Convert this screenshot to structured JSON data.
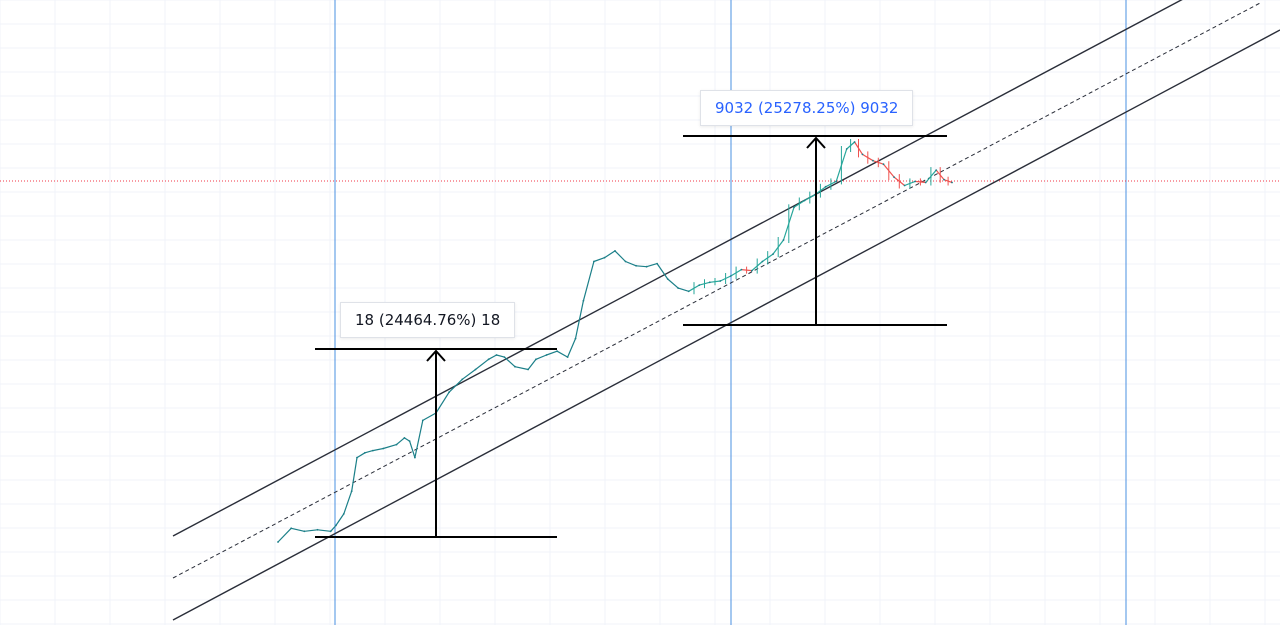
{
  "chart_data": {
    "type": "line",
    "title": "",
    "xlabel": "",
    "ylabel": "",
    "grid": true,
    "log_scale": true,
    "series": [
      {
        "values": [
          [
            0,
            1.0
          ],
          [
            5,
            1.4
          ],
          [
            10,
            1.3
          ],
          [
            15,
            1.35
          ],
          [
            20,
            1.3
          ],
          [
            22,
            1.5
          ],
          [
            25,
            2.0
          ],
          [
            28,
            3.5
          ],
          [
            30,
            8.0
          ],
          [
            33,
            9.0
          ],
          [
            36,
            9.5
          ],
          [
            40,
            10.0
          ],
          [
            45,
            11.0
          ],
          [
            48,
            13.0
          ],
          [
            50,
            12.0
          ],
          [
            52,
            8.0
          ],
          [
            55,
            20.0
          ],
          [
            60,
            24.0
          ],
          [
            65,
            40.0
          ],
          [
            70,
            55.0
          ],
          [
            75,
            70.0
          ],
          [
            80,
            90.0
          ],
          [
            83,
            100.0
          ],
          [
            86,
            95.0
          ],
          [
            90,
            75.0
          ],
          [
            95,
            70.0
          ],
          [
            98,
            90.0
          ],
          [
            102,
            100.0
          ],
          [
            106,
            110.0
          ],
          [
            110,
            95.0
          ],
          [
            113,
            150.0
          ],
          [
            116,
            380.0
          ],
          [
            120,
            1000.0
          ],
          [
            124,
            1100.0
          ],
          [
            128,
            1300.0
          ],
          [
            132,
            1000.0
          ],
          [
            136,
            900.0
          ],
          [
            140,
            880.0
          ],
          [
            144,
            950.0
          ],
          [
            148,
            650.0
          ],
          [
            152,
            520.0
          ],
          [
            156,
            480.0
          ],
          [
            160,
            560.0
          ],
          [
            164,
            600.0
          ],
          [
            168,
            620.0
          ],
          [
            172,
            700.0
          ],
          [
            176,
            820.0
          ],
          [
            180,
            800.0
          ],
          [
            184,
            1000.0
          ],
          [
            188,
            1200.0
          ],
          [
            192,
            1700.0
          ],
          [
            196,
            3800.0
          ],
          [
            200,
            4500.0
          ],
          [
            204,
            5200.0
          ],
          [
            208,
            6300.0
          ],
          [
            212,
            7200.0
          ],
          [
            216,
            16000.0
          ],
          [
            219,
            19000.0
          ],
          [
            222,
            14000.0
          ],
          [
            226,
            12000.0
          ],
          [
            230,
            11000.0
          ],
          [
            234,
            8000.0
          ],
          [
            238,
            6500.0
          ],
          [
            242,
            7200.0
          ],
          [
            246,
            7000.0
          ],
          [
            250,
            9500.0
          ],
          [
            253,
            7500.0
          ],
          [
            256,
            7000.0
          ]
        ],
        "candle_from_index": 42
      }
    ],
    "channel": {
      "upper": true,
      "middle_dashed": true,
      "lower": true
    },
    "vertical_lines": 3,
    "horizontal_level_dotted": true,
    "measurements": [
      {
        "text": "18 (24464.76%) 18",
        "color": "#131722"
      },
      {
        "text": "9032 (25278.25%) 9032",
        "color": "#2962ff"
      }
    ]
  },
  "colors": {
    "up": "#26a69a",
    "down": "#ef5350",
    "line": "#2a2e39",
    "vline": "#4a90e2",
    "hline": "#f23645",
    "grid": "#f0f3fa"
  }
}
